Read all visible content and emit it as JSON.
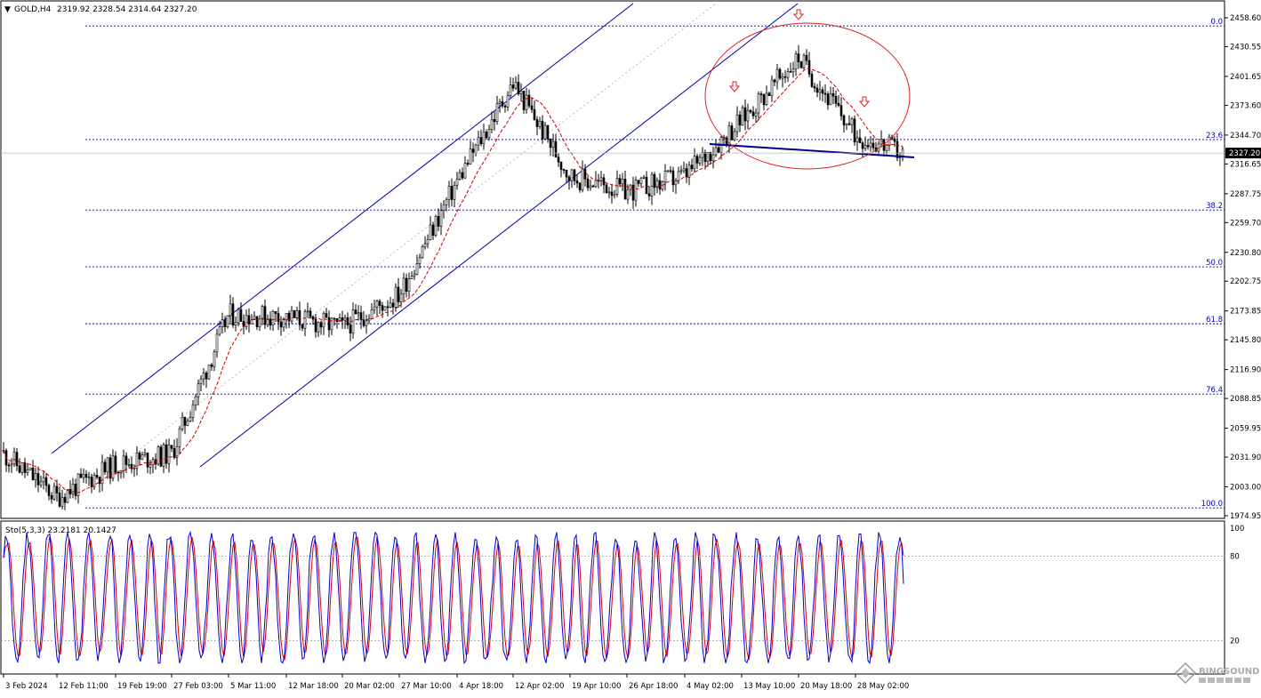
{
  "header": {
    "menu_arrow": "▼",
    "symbol": "GOLD,H4",
    "ohlc": "2319.92 2328.54 2314.64 2327.20"
  },
  "price_axis": {
    "labels": [
      "2458.60",
      "2430.55",
      "2401.65",
      "2373.60",
      "2344.70",
      "2316.65",
      "2287.75",
      "2259.70",
      "2230.80",
      "2202.75",
      "2173.85",
      "2145.80",
      "2116.90",
      "2088.85",
      "2059.95",
      "2031.90",
      "2003.00",
      "1974.95"
    ],
    "current_price": "2327.20"
  },
  "fib_levels": [
    {
      "label": "0.0",
      "price": 2450.7
    },
    {
      "label": "23.6",
      "price": 2340.3
    },
    {
      "label": "38.2",
      "price": 2271.9
    },
    {
      "label": "50.0",
      "price": 2216.7
    },
    {
      "label": "61.8",
      "price": 2161.4
    },
    {
      "label": "76.4",
      "price": 2093.1
    },
    {
      "label": "100.0",
      "price": 1982.6
    }
  ],
  "stochastic": {
    "title": "Sto(5,3,3) 23.2181 20.1427",
    "levels": [
      "100",
      "80",
      "20"
    ]
  },
  "time_axis": {
    "labels": [
      "3 Feb 2024",
      "12 Feb 11:00",
      "19 Feb 19:00",
      "27 Feb 03:00",
      "5 Mar 11:00",
      "12 Mar 18:00",
      "20 Mar 02:00",
      "27 Mar 10:00",
      "4 Apr 18:00",
      "12 Apr 02:00",
      "19 Apr 10:00",
      "26 Apr 18:00",
      "4 May 02:00",
      "13 May 10:00",
      "20 May 18:00",
      "28 May 02:00"
    ]
  },
  "watermark": {
    "text": "BINGSOUND",
    "icon": "diamond-logo-icon"
  },
  "chart_data": {
    "type": "candlestick",
    "title": "GOLD,H4",
    "timeframe": "H4",
    "ylim": [
      1974.95,
      2458.6
    ],
    "last_close": 2327.2,
    "ma_color": "#cc0000",
    "channel_color": "#0000aa",
    "pattern": "head-and-shoulders",
    "neckline": [
      {
        "x": "4 May 02:00",
        "y": 2336
      },
      {
        "x": "28 May 02:00",
        "y": 2323
      }
    ],
    "price_path": [
      {
        "x": "3 Feb 2024",
        "y": 2035
      },
      {
        "x": "12 Feb 11:00",
        "y": 1993
      },
      {
        "x": "19 Feb 19:00",
        "y": 2025
      },
      {
        "x": "27 Feb 03:00",
        "y": 2035
      },
      {
        "x": "5 Mar 11:00",
        "y": 2170
      },
      {
        "x": "12 Mar 18:00",
        "y": 2168
      },
      {
        "x": "20 Mar 02:00",
        "y": 2158
      },
      {
        "x": "27 Mar 10:00",
        "y": 2190
      },
      {
        "x": "4 Apr 18:00",
        "y": 2300
      },
      {
        "x": "12 Apr 02:00",
        "y": 2395
      },
      {
        "x": "19 Apr 10:00",
        "y": 2305
      },
      {
        "x": "26 Apr 18:00",
        "y": 2290
      },
      {
        "x": "4 May 02:00",
        "y": 2305
      },
      {
        "x": "13 May 10:00",
        "y": 2360
      },
      {
        "x": "20 May 18:00",
        "y": 2420
      },
      {
        "x": "28 May 02:00",
        "y": 2345
      }
    ]
  }
}
